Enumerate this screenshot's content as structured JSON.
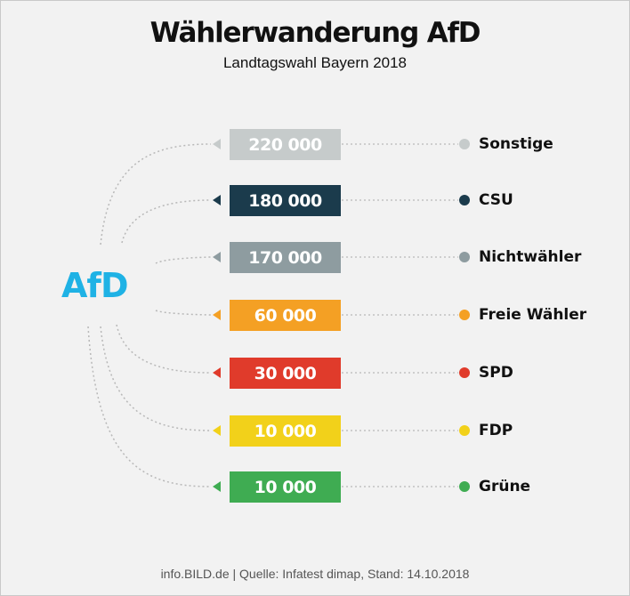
{
  "title": "Wählerwanderung AfD",
  "subtitle": "Landtagswahl Bayern 2018",
  "target": {
    "label": "AfD",
    "color": "#1fb2e5"
  },
  "chart_data": {
    "type": "bar",
    "title": "Wählerwanderung AfD",
    "subtitle": "Landtagswahl Bayern 2018",
    "categories": [
      "Sonstige",
      "CSU",
      "Nichtwähler",
      "Freie Wähler",
      "SPD",
      "FDP",
      "Grüne"
    ],
    "values": [
      220000,
      180000,
      170000,
      60000,
      30000,
      10000,
      10000
    ],
    "value_labels": [
      "220 000",
      "180 000",
      "170 000",
      "60 000",
      "30 000",
      "10 000",
      "10 000"
    ],
    "colors": [
      "#c6cbcb",
      "#1b3b4c",
      "#8e9ca0",
      "#f4a024",
      "#e03b2b",
      "#f2d11a",
      "#3fac52"
    ]
  },
  "source": "info.BILD.de | Quelle: Infatest dimap, Stand: 14.10.2018"
}
